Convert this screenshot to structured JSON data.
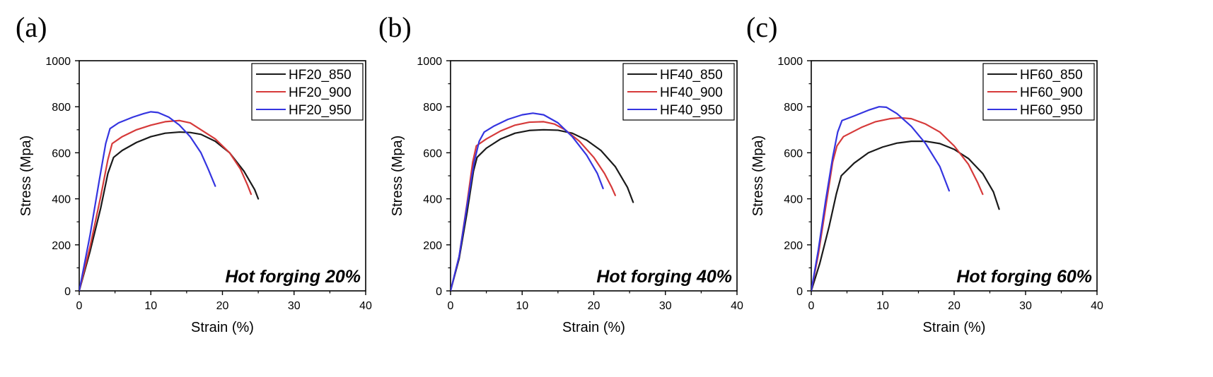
{
  "colors": {
    "HF_850": "#1a1a1a",
    "HF_900": "#d63a3a",
    "HF_950": "#3535e0"
  },
  "chart_data": [
    {
      "type": "line",
      "panel_label": "(a)",
      "annotation": "Hot forging 20%",
      "xlabel": "Strain (%)",
      "ylabel": "Stress (Mpa)",
      "xlim": [
        0,
        40
      ],
      "ylim": [
        0,
        1000
      ],
      "x_ticks": [
        0,
        10,
        20,
        30,
        40
      ],
      "y_ticks": [
        0,
        200,
        400,
        600,
        800,
        1000
      ],
      "x_tick_labels": [
        "0",
        "10",
        "20",
        "30",
        "40"
      ],
      "y_tick_labels": [
        "0",
        "200",
        "400",
        "600",
        "800",
        "1000"
      ],
      "legend_position": "top-right",
      "series": [
        {
          "name": "HF20_850",
          "color_key": "HF_850",
          "points": [
            [
              0,
              0
            ],
            [
              1.5,
              170
            ],
            [
              3,
              360
            ],
            [
              4,
              510
            ],
            [
              4.8,
              580
            ],
            [
              6,
              610
            ],
            [
              8,
              645
            ],
            [
              10,
              670
            ],
            [
              12,
              685
            ],
            [
              14,
              690
            ],
            [
              15.5,
              688
            ],
            [
              17,
              680
            ],
            [
              19,
              650
            ],
            [
              21,
              600
            ],
            [
              23,
              520
            ],
            [
              24.5,
              440
            ],
            [
              25,
              400
            ]
          ]
        },
        {
          "name": "HF20_900",
          "color_key": "HF_900",
          "points": [
            [
              0,
              0
            ],
            [
              1.5,
              190
            ],
            [
              3,
              410
            ],
            [
              4,
              570
            ],
            [
              4.6,
              640
            ],
            [
              6,
              670
            ],
            [
              8,
              700
            ],
            [
              10,
              720
            ],
            [
              12,
              735
            ],
            [
              14,
              740
            ],
            [
              15.5,
              730
            ],
            [
              17,
              700
            ],
            [
              19,
              660
            ],
            [
              21,
              600
            ],
            [
              22.5,
              530
            ],
            [
              23.5,
              460
            ],
            [
              24,
              420
            ]
          ]
        },
        {
          "name": "HF20_950",
          "color_key": "HF_950",
          "points": [
            [
              0,
              0
            ],
            [
              1.5,
              240
            ],
            [
              2.8,
              480
            ],
            [
              3.7,
              640
            ],
            [
              4.3,
              705
            ],
            [
              5.5,
              730
            ],
            [
              7.5,
              755
            ],
            [
              9,
              770
            ],
            [
              10,
              778
            ],
            [
              11,
              775
            ],
            [
              12.5,
              755
            ],
            [
              14,
              720
            ],
            [
              15.5,
              670
            ],
            [
              17,
              600
            ],
            [
              18,
              530
            ],
            [
              19,
              455
            ]
          ]
        }
      ]
    },
    {
      "type": "line",
      "panel_label": "(b)",
      "annotation": "Hot forging 40%",
      "xlabel": "Strain (%)",
      "ylabel": "Stress (Mpa)",
      "xlim": [
        0,
        40
      ],
      "ylim": [
        0,
        1000
      ],
      "x_ticks": [
        0,
        10,
        20,
        30,
        40
      ],
      "y_ticks": [
        0,
        200,
        400,
        600,
        800,
        1000
      ],
      "x_tick_labels": [
        "0",
        "10",
        "20",
        "30",
        "40"
      ],
      "y_tick_labels": [
        "0",
        "200",
        "400",
        "600",
        "800",
        "1000"
      ],
      "legend_position": "top-right",
      "series": [
        {
          "name": "HF40_850",
          "color_key": "HF_850",
          "points": [
            [
              0,
              0
            ],
            [
              1.2,
              140
            ],
            [
              2.3,
              340
            ],
            [
              3.2,
              520
            ],
            [
              3.7,
              580
            ],
            [
              5,
              620
            ],
            [
              7,
              660
            ],
            [
              9,
              685
            ],
            [
              11,
              697
            ],
            [
              13,
              700
            ],
            [
              15,
              698
            ],
            [
              17,
              685
            ],
            [
              19,
              655
            ],
            [
              21,
              610
            ],
            [
              23,
              540
            ],
            [
              24.7,
              450
            ],
            [
              25.5,
              385
            ]
          ]
        },
        {
          "name": "HF40_900",
          "color_key": "HF_900",
          "points": [
            [
              0,
              0
            ],
            [
              1.2,
              150
            ],
            [
              2.3,
              380
            ],
            [
              3.1,
              560
            ],
            [
              3.6,
              630
            ],
            [
              5,
              660
            ],
            [
              7,
              695
            ],
            [
              9,
              720
            ],
            [
              11,
              733
            ],
            [
              13,
              735
            ],
            [
              14.5,
              725
            ],
            [
              16,
              700
            ],
            [
              18,
              650
            ],
            [
              20,
              580
            ],
            [
              21.5,
              510
            ],
            [
              22.5,
              450
            ],
            [
              23,
              415
            ]
          ]
        },
        {
          "name": "HF40_950",
          "color_key": "HF_950",
          "points": [
            [
              0,
              0
            ],
            [
              1.2,
              150
            ],
            [
              2.3,
              370
            ],
            [
              3.3,
              560
            ],
            [
              4,
              650
            ],
            [
              4.7,
              690
            ],
            [
              6,
              715
            ],
            [
              8,
              745
            ],
            [
              10,
              765
            ],
            [
              11.5,
              772
            ],
            [
              13,
              765
            ],
            [
              15,
              730
            ],
            [
              17,
              670
            ],
            [
              19,
              590
            ],
            [
              20.5,
              510
            ],
            [
              21.3,
              445
            ]
          ]
        }
      ]
    },
    {
      "type": "line",
      "panel_label": "(c)",
      "annotation": "Hot forging 60%",
      "xlabel": "Strain (%)",
      "ylabel": "Stress (Mpa)",
      "xlim": [
        0,
        40
      ],
      "ylim": [
        0,
        1000
      ],
      "x_ticks": [
        0,
        10,
        20,
        30,
        40
      ],
      "y_ticks": [
        0,
        200,
        400,
        600,
        800,
        1000
      ],
      "x_tick_labels": [
        "0",
        "10",
        "20",
        "30",
        "40"
      ],
      "y_tick_labels": [
        "0",
        "200",
        "400",
        "600",
        "800",
        "1000"
      ],
      "legend_position": "top-right",
      "series": [
        {
          "name": "HF60_850",
          "color_key": "HF_850",
          "points": [
            [
              0,
              0
            ],
            [
              1.2,
              120
            ],
            [
              2.5,
              280
            ],
            [
              3.5,
              420
            ],
            [
              4.2,
              500
            ],
            [
              6,
              555
            ],
            [
              8,
              600
            ],
            [
              10,
              625
            ],
            [
              12,
              642
            ],
            [
              14,
              650
            ],
            [
              16,
              650
            ],
            [
              18,
              640
            ],
            [
              20,
              615
            ],
            [
              22,
              575
            ],
            [
              24,
              510
            ],
            [
              25.5,
              430
            ],
            [
              26.3,
              355
            ]
          ]
        },
        {
          "name": "HF60_900",
          "color_key": "HF_900",
          "points": [
            [
              0,
              0
            ],
            [
              1,
              160
            ],
            [
              2,
              360
            ],
            [
              3,
              560
            ],
            [
              3.6,
              630
            ],
            [
              4.5,
              670
            ],
            [
              7,
              710
            ],
            [
              9,
              735
            ],
            [
              11,
              748
            ],
            [
              12.5,
              752
            ],
            [
              14,
              748
            ],
            [
              16,
              725
            ],
            [
              18,
              690
            ],
            [
              20,
              630
            ],
            [
              22,
              550
            ],
            [
              23.3,
              470
            ],
            [
              24,
              420
            ]
          ]
        },
        {
          "name": "HF60_950",
          "color_key": "HF_950",
          "points": [
            [
              0,
              0
            ],
            [
              1,
              180
            ],
            [
              2,
              390
            ],
            [
              3,
              580
            ],
            [
              3.7,
              690
            ],
            [
              4.3,
              740
            ],
            [
              6,
              760
            ],
            [
              8,
              785
            ],
            [
              9.5,
              800
            ],
            [
              10.5,
              798
            ],
            [
              12,
              770
            ],
            [
              14,
              715
            ],
            [
              16,
              640
            ],
            [
              18,
              540
            ],
            [
              19.3,
              435
            ]
          ]
        }
      ]
    }
  ]
}
